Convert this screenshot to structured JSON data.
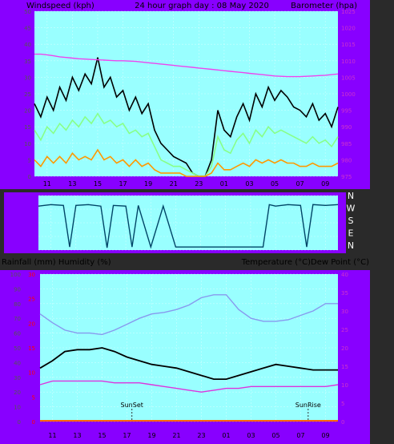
{
  "colors": {
    "background": "#8800ff",
    "plot_area": "#99ffff",
    "gust": "#000000",
    "avg_wind": "#88ff88",
    "min_wind": "#ff9900",
    "barometer": "#ee44ee",
    "direction": "#004466",
    "humidity": "#8899ee",
    "temperature": "#000000",
    "dew_point": "#dd33dd",
    "rainfall": "#ff6600",
    "left_tick_text": "#555555",
    "right_tick_text": "#cc33cc",
    "rain_tick_text": "#ff0000"
  },
  "top_panel": {
    "left_label": "Windspeed (kph)",
    "center_label": "24 hour graph day : 08 May 2020",
    "right_label": "Barometer (hpa)"
  },
  "bottom_panel": {
    "left_label": "Rainfall (mm)  Humidity (%)",
    "right_label": "Temperature (°C)Dew Point (°C)",
    "sunset_label": "SunSet",
    "sunrise_label": "SunRise"
  },
  "compass_labels": [
    "N",
    "W",
    "S",
    "E",
    "N"
  ],
  "x_tick_labels": [
    "11",
    "13",
    "15",
    "17",
    "19",
    "21",
    "23",
    "01",
    "03",
    "05",
    "07",
    "09"
  ],
  "chart_data": [
    {
      "type": "line",
      "title": "24 hour graph day : 08 May 2020",
      "x_hours": [
        10,
        10.5,
        11,
        11.5,
        12,
        12.5,
        13,
        13.5,
        14,
        14.5,
        15,
        15.5,
        16,
        16.5,
        17,
        17.5,
        18,
        18.5,
        19,
        19.5,
        20,
        20.5,
        21,
        21.5,
        22,
        22.5,
        23,
        23.5,
        24,
        24.5,
        25,
        25.5,
        26,
        26.5,
        27,
        27.5,
        28,
        28.5,
        29,
        29.5,
        30,
        30.5,
        31,
        31.5,
        32,
        32.5,
        33,
        33.5,
        34
      ],
      "x_tick_labels": [
        "11",
        "13",
        "15",
        "17",
        "19",
        "21",
        "23",
        "01",
        "03",
        "05",
        "07",
        "09"
      ],
      "y_left": {
        "label": "Windspeed (kph)",
        "ylim": [
          0,
          50
        ],
        "ticks": [
          0,
          5,
          10,
          15,
          20,
          25,
          30,
          35,
          40,
          45,
          50
        ]
      },
      "y_right": {
        "label": "Barometer (hpa)",
        "ylim": [
          975,
          1025
        ],
        "ticks": [
          975,
          980,
          985,
          990,
          995,
          1000,
          1005,
          1010,
          1015,
          1020,
          1025
        ]
      },
      "series": [
        {
          "name": "Gust",
          "axis": "left",
          "values": [
            22,
            18,
            24,
            20,
            27,
            23,
            30,
            26,
            31,
            28,
            36,
            27,
            30,
            24,
            26,
            20,
            24,
            19,
            22,
            14,
            10,
            8,
            6,
            5,
            4,
            1,
            0,
            0,
            5,
            20,
            14,
            12,
            18,
            22,
            17,
            25,
            21,
            27,
            23,
            26,
            24,
            21,
            20,
            18,
            22,
            17,
            19,
            15,
            21
          ]
        },
        {
          "name": "Average",
          "axis": "left",
          "values": [
            14,
            11,
            15,
            13,
            16,
            14,
            17,
            15,
            18,
            16,
            19,
            16,
            17,
            15,
            16,
            13,
            14,
            12,
            13,
            9,
            5,
            4,
            3,
            3,
            2,
            1,
            0,
            0,
            3,
            12,
            8,
            7,
            11,
            13,
            10,
            14,
            12,
            15,
            13,
            14,
            13,
            12,
            11,
            10,
            12,
            10,
            11,
            9,
            12
          ]
        },
        {
          "name": "Lowest",
          "axis": "left",
          "values": [
            5,
            3,
            6,
            4,
            6,
            4,
            7,
            5,
            6,
            5,
            8,
            5,
            6,
            4,
            5,
            3,
            5,
            3,
            4,
            2,
            1,
            1,
            1,
            1,
            0,
            0,
            0,
            0,
            1,
            4,
            2,
            2,
            3,
            4,
            3,
            5,
            4,
            5,
            4,
            5,
            4,
            4,
            3,
            3,
            4,
            3,
            3,
            3,
            4
          ]
        },
        {
          "name": "Barometer",
          "axis": "right",
          "values": [
            1012,
            1012,
            1011.8,
            1011.5,
            1011.2,
            1011,
            1010.8,
            1010.6,
            1010.5,
            1010.4,
            1010.3,
            1010.2,
            1010.1,
            1010,
            1010,
            1009.9,
            1009.8,
            1009.6,
            1009.4,
            1009.2,
            1009,
            1008.8,
            1008.6,
            1008.4,
            1008.2,
            1008,
            1007.8,
            1007.6,
            1007.4,
            1007.2,
            1007,
            1006.8,
            1006.6,
            1006.4,
            1006.2,
            1006,
            1005.8,
            1005.6,
            1005.4,
            1005.3,
            1005.2,
            1005.2,
            1005.2,
            1005.3,
            1005.4,
            1005.5,
            1005.6,
            1005.8,
            1006
          ]
        }
      ]
    },
    {
      "type": "line",
      "title": "",
      "x_hours": [
        10,
        11,
        12,
        12.5,
        13,
        14,
        15,
        15.5,
        16,
        17,
        17.5,
        18,
        19,
        20,
        21,
        22,
        23,
        24,
        25,
        26,
        27,
        28,
        28.5,
        29,
        30,
        31,
        31.5,
        32,
        33,
        34
      ],
      "y_labels": [
        "N",
        "W",
        "S",
        "E",
        "N"
      ],
      "ylim": [
        0,
        360
      ],
      "series": [
        {
          "name": "Direction",
          "values": [
            290,
            300,
            295,
            20,
            295,
            300,
            290,
            15,
            295,
            290,
            20,
            295,
            20,
            290,
            20,
            20,
            20,
            20,
            20,
            20,
            20,
            20,
            300,
            290,
            300,
            295,
            20,
            300,
            295,
            300
          ]
        }
      ]
    },
    {
      "type": "line",
      "title": "",
      "x_hours": [
        10,
        11,
        12,
        13,
        14,
        15,
        16,
        17,
        18,
        19,
        20,
        21,
        22,
        23,
        24,
        25,
        26,
        27,
        28,
        29,
        30,
        31,
        32,
        33,
        34
      ],
      "x_tick_labels": [
        "11",
        "13",
        "15",
        "17",
        "19",
        "21",
        "23",
        "01",
        "03",
        "05",
        "07",
        "09"
      ],
      "y_left": {
        "label": "Rainfall (mm)  Humidity (%)",
        "ylim": [
          0,
          100
        ],
        "ticks": [
          0,
          10,
          20,
          30,
          40,
          50,
          60,
          70,
          80,
          90,
          100
        ],
        "rain_ticks": [
          0,
          5,
          10,
          15,
          20,
          25,
          30
        ]
      },
      "y_right": {
        "label": "Temperature (°C)Dew Point (°C)",
        "ylim": [
          0,
          40
        ],
        "ticks": [
          0,
          5,
          10,
          15,
          20,
          25,
          30,
          35,
          40
        ]
      },
      "annotations": [
        {
          "text": "SunSet",
          "x": 17.4
        },
        {
          "text": "SunRise",
          "x": 31.6
        }
      ],
      "series": [
        {
          "name": "Humidity",
          "axis": "left",
          "values": [
            73,
            67,
            62,
            60,
            60,
            59,
            62,
            66,
            70,
            73,
            74,
            76,
            79,
            84,
            86,
            86,
            76,
            70,
            68,
            68,
            69,
            72,
            75,
            80,
            80
          ]
        },
        {
          "name": "Temperature",
          "axis": "right",
          "values": [
            14.5,
            16.5,
            19,
            19.5,
            19.5,
            20,
            19,
            17.5,
            16.5,
            15.5,
            15,
            14.5,
            13.5,
            12.5,
            11.5,
            11.5,
            12.5,
            13.5,
            14.5,
            15.5,
            15,
            14.5,
            14,
            14,
            14
          ]
        },
        {
          "name": "Dew Point",
          "axis": "right",
          "values": [
            10,
            11,
            11,
            11,
            11,
            11,
            10.5,
            10.5,
            10.5,
            10,
            9.5,
            9,
            8.5,
            8,
            8.5,
            9,
            9,
            9.5,
            9.5,
            9.5,
            9.5,
            9.5,
            9.5,
            9.5,
            10
          ]
        },
        {
          "name": "Rainfall",
          "axis": "left",
          "values": [
            0,
            0,
            0,
            0,
            0,
            0,
            0,
            0,
            0,
            0,
            0,
            0,
            0,
            0,
            0,
            0,
            0,
            0,
            0,
            0,
            0,
            0,
            0,
            0,
            0
          ]
        }
      ]
    }
  ]
}
